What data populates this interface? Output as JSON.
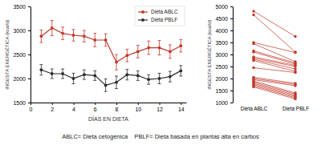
{
  "chart_data": [
    {
      "type": "line",
      "x": [
        1,
        2,
        3,
        4,
        5,
        6,
        7,
        8,
        9,
        10,
        11,
        12,
        13,
        14
      ],
      "xlim": [
        0,
        14.5
      ],
      "xticks": [
        0,
        2,
        4,
        6,
        8,
        10,
        12,
        14
      ],
      "ylim": [
        1500,
        3500
      ],
      "yticks": [
        1500,
        2000,
        2500,
        3000,
        3500
      ],
      "xlabel": "DÍAS EN DIETA",
      "ylabel": "INGESTA ENERGÉTICA (kcal/d)",
      "legend": "upper right",
      "annotations": [
        "ABLC= Dieta cetogénica    PBLF= Dieta basada en plantas alta en carbos"
      ],
      "series": [
        {
          "name": "Dieta ABLC",
          "color": "#c0392b",
          "marker": "circle",
          "values": [
            2880,
            3050,
            2940,
            2900,
            2880,
            2800,
            2800,
            2340,
            2480,
            2560,
            2640,
            2640,
            2560,
            2680
          ],
          "errors": [
            130,
            160,
            130,
            120,
            120,
            140,
            130,
            160,
            130,
            130,
            140,
            150,
            140,
            130
          ]
        },
        {
          "name": "Dieta PBLF",
          "color": "#2c2c2c",
          "marker": "circle",
          "values": [
            2180,
            2100,
            2100,
            2000,
            2080,
            2060,
            1860,
            1920,
            2080,
            2060,
            1980,
            2000,
            2040,
            2160
          ],
          "errors": [
            110,
            100,
            100,
            110,
            100,
            100,
            130,
            130,
            110,
            100,
            100,
            110,
            110,
            110
          ]
        }
      ]
    },
    {
      "type": "slope",
      "categories": [
        "Dieta ABLC",
        "Dieta PBLF"
      ],
      "ylim": [
        1000,
        5000
      ],
      "yticks": [
        1000,
        1500,
        2000,
        2500,
        3000,
        3500,
        4000,
        4500,
        5000
      ],
      "ylabel": "INGESTA ENERGÉTICA (kcal/d)",
      "color": "#c0392b",
      "marker": "circle",
      "series": [
        {
          "values": [
            4800,
            3750
          ]
        },
        {
          "values": [
            4650,
            3100
          ]
        },
        {
          "values": [
            3500,
            3080
          ]
        },
        {
          "values": [
            3450,
            2700
          ]
        },
        {
          "values": [
            3150,
            2650
          ]
        },
        {
          "values": [
            3100,
            2600
          ]
        },
        {
          "values": [
            2900,
            2550
          ]
        },
        {
          "values": [
            2850,
            2500
          ]
        },
        {
          "values": [
            2800,
            2400
          ]
        },
        {
          "values": [
            2750,
            2300
          ]
        },
        {
          "values": [
            2450,
            2250
          ]
        },
        {
          "values": [
            2050,
            1800
          ]
        },
        {
          "values": [
            2000,
            1750
          ]
        },
        {
          "values": [
            1950,
            1700
          ]
        },
        {
          "values": [
            1900,
            1400
          ]
        },
        {
          "values": [
            1850,
            1350
          ]
        },
        {
          "values": [
            1800,
            1300
          ]
        },
        {
          "values": [
            1750,
            1250
          ]
        },
        {
          "values": [
            1700,
            1200
          ]
        },
        {
          "values": [
            1650,
            1150
          ]
        }
      ]
    }
  ]
}
